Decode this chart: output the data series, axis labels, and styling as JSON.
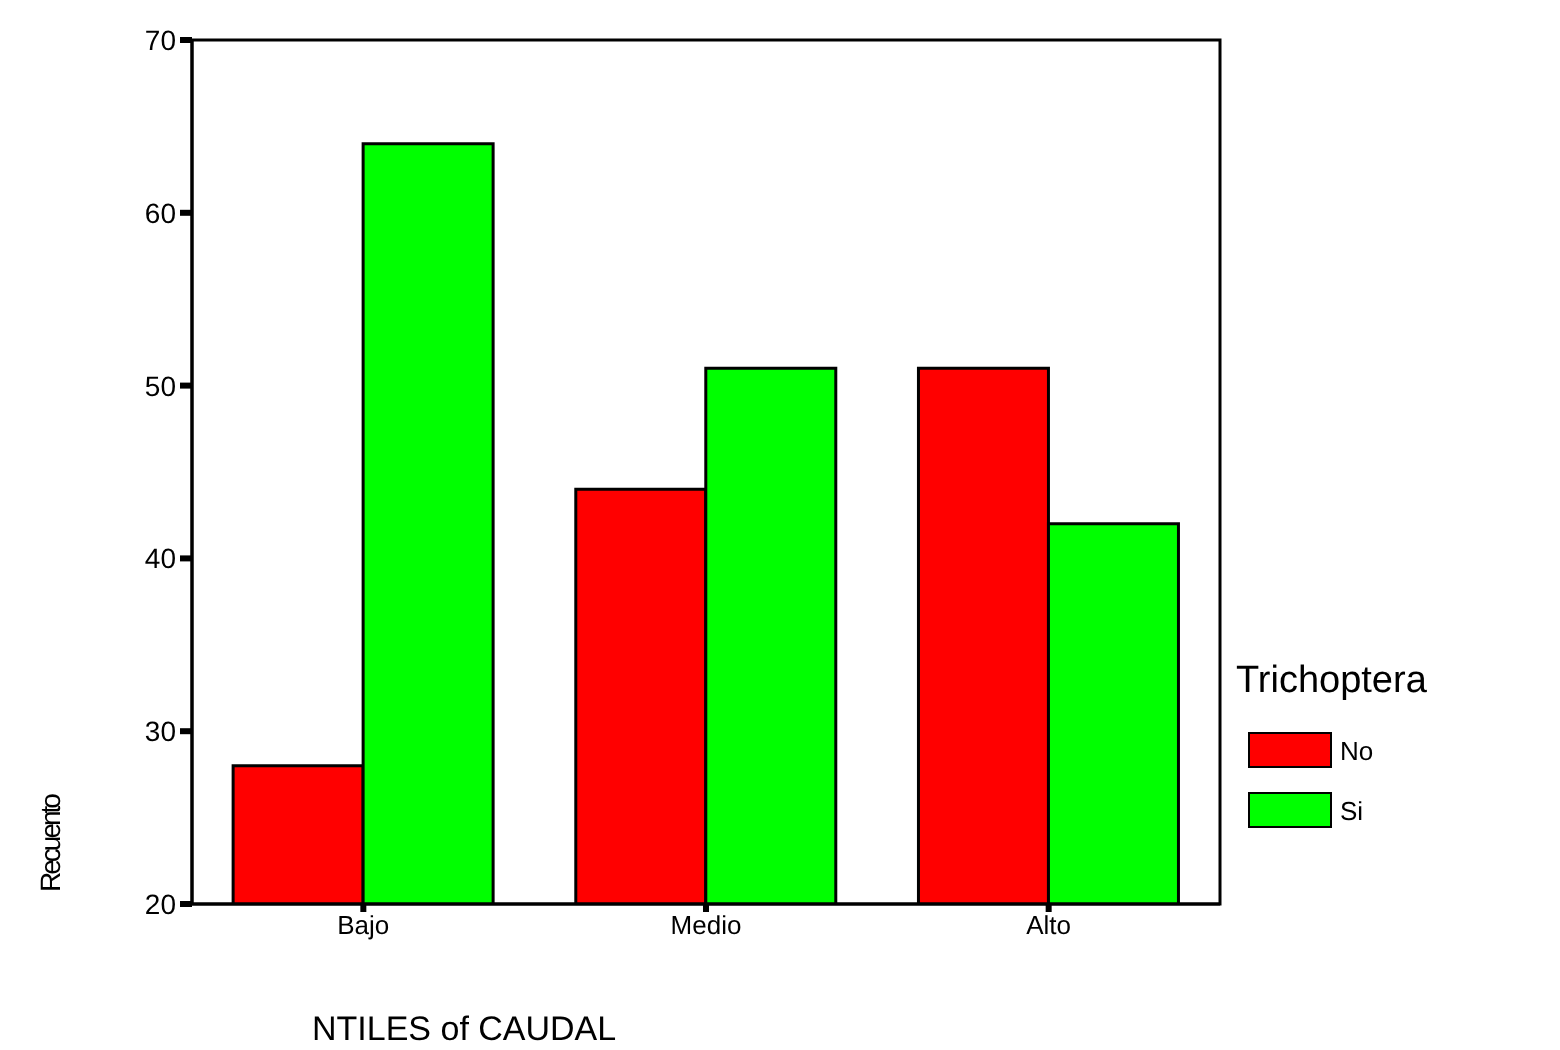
{
  "chart_data": {
    "type": "bar",
    "xlabel": "NTILES of CAUDAL",
    "ylabel": "Recuento",
    "legend_title": "Trichoptera",
    "categories": [
      "Bajo",
      "Medio",
      "Alto"
    ],
    "series": [
      {
        "name": "No",
        "color": "#ff0000",
        "values": [
          28,
          44,
          51
        ]
      },
      {
        "name": "Si",
        "color": "#00ff00",
        "values": [
          64,
          51,
          42
        ]
      }
    ],
    "ylim": [
      20,
      70
    ],
    "yticks": [
      20,
      30,
      40,
      50,
      60,
      70
    ],
    "grid": false,
    "legend": "right"
  }
}
